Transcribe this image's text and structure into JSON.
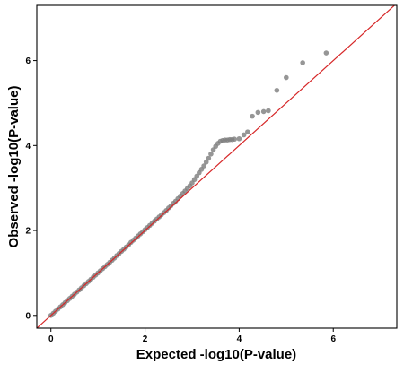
{
  "chart_data": {
    "type": "scatter",
    "title": "",
    "xlabel": "Expected -log10(P-value)",
    "ylabel": "Observed -log10(P-value)",
    "xlim": [
      -0.3,
      7.35
    ],
    "ylim": [
      -0.3,
      7.3
    ],
    "x_ticks": [
      0,
      2,
      4,
      6
    ],
    "y_ticks": [
      0,
      2,
      4,
      6
    ],
    "grid": false,
    "legend": "none",
    "point_color": "#7f7f7f",
    "reference_line": {
      "type": "y=x",
      "color": "#d62728"
    },
    "points": [
      [
        0.0,
        0.0
      ],
      [
        0.05,
        0.05
      ],
      [
        0.1,
        0.1
      ],
      [
        0.15,
        0.15
      ],
      [
        0.2,
        0.2
      ],
      [
        0.25,
        0.25
      ],
      [
        0.3,
        0.3
      ],
      [
        0.35,
        0.35
      ],
      [
        0.4,
        0.4
      ],
      [
        0.45,
        0.45
      ],
      [
        0.5,
        0.5
      ],
      [
        0.55,
        0.55
      ],
      [
        0.6,
        0.6
      ],
      [
        0.65,
        0.65
      ],
      [
        0.7,
        0.7
      ],
      [
        0.75,
        0.75
      ],
      [
        0.8,
        0.8
      ],
      [
        0.85,
        0.85
      ],
      [
        0.9,
        0.9
      ],
      [
        0.95,
        0.95
      ],
      [
        1.0,
        1.0
      ],
      [
        1.05,
        1.05
      ],
      [
        1.1,
        1.1
      ],
      [
        1.15,
        1.15
      ],
      [
        1.2,
        1.2
      ],
      [
        1.25,
        1.25
      ],
      [
        1.3,
        1.3
      ],
      [
        1.35,
        1.35
      ],
      [
        1.4,
        1.41
      ],
      [
        1.45,
        1.46
      ],
      [
        1.5,
        1.51
      ],
      [
        1.55,
        1.56
      ],
      [
        1.6,
        1.61
      ],
      [
        1.65,
        1.66
      ],
      [
        1.7,
        1.72
      ],
      [
        1.75,
        1.77
      ],
      [
        1.8,
        1.82
      ],
      [
        1.85,
        1.87
      ],
      [
        1.9,
        1.92
      ],
      [
        1.95,
        1.97
      ],
      [
        2.0,
        2.02
      ],
      [
        2.05,
        2.07
      ],
      [
        2.1,
        2.12
      ],
      [
        2.15,
        2.17
      ],
      [
        2.2,
        2.22
      ],
      [
        2.25,
        2.27
      ],
      [
        2.3,
        2.32
      ],
      [
        2.35,
        2.37
      ],
      [
        2.4,
        2.42
      ],
      [
        2.45,
        2.47
      ],
      [
        2.5,
        2.53
      ],
      [
        2.55,
        2.58
      ],
      [
        2.6,
        2.64
      ],
      [
        2.65,
        2.69
      ],
      [
        2.7,
        2.75
      ],
      [
        2.75,
        2.81
      ],
      [
        2.8,
        2.87
      ],
      [
        2.85,
        2.93
      ],
      [
        2.9,
        2.99
      ],
      [
        2.95,
        3.05
      ],
      [
        3.0,
        3.12
      ],
      [
        3.05,
        3.2
      ],
      [
        3.1,
        3.28
      ],
      [
        3.15,
        3.36
      ],
      [
        3.2,
        3.44
      ],
      [
        3.25,
        3.52
      ],
      [
        3.3,
        3.61
      ],
      [
        3.35,
        3.7
      ],
      [
        3.4,
        3.8
      ],
      [
        3.45,
        3.9
      ],
      [
        3.5,
        3.98
      ],
      [
        3.55,
        4.05
      ],
      [
        3.6,
        4.1
      ],
      [
        3.65,
        4.12
      ],
      [
        3.7,
        4.13
      ],
      [
        3.75,
        4.13
      ],
      [
        3.8,
        4.14
      ],
      [
        3.85,
        4.14
      ],
      [
        3.9,
        4.15
      ],
      [
        4.0,
        4.16
      ],
      [
        4.1,
        4.25
      ],
      [
        4.18,
        4.32
      ],
      [
        4.28,
        4.69
      ],
      [
        4.4,
        4.78
      ],
      [
        4.52,
        4.8
      ],
      [
        4.62,
        4.82
      ],
      [
        4.8,
        5.3
      ],
      [
        5.0,
        5.6
      ],
      [
        5.35,
        5.95
      ],
      [
        5.85,
        6.18
      ]
    ]
  }
}
